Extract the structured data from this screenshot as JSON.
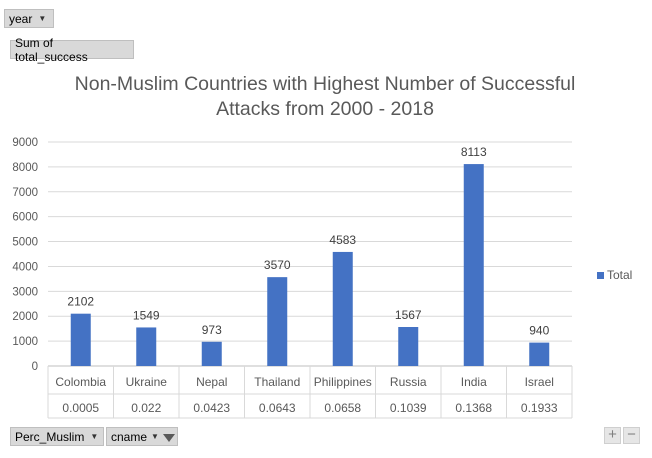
{
  "pivot": {
    "year_label": "year",
    "sum_label": "Sum of total_success",
    "perc_label": "Perc_Muslim",
    "cname_label": "cname",
    "zoom_in": "+",
    "zoom_out": "−"
  },
  "colors": {
    "bar": "#4472c4",
    "grid": "#d9d9d9"
  },
  "chart_data": {
    "type": "bar",
    "title": "Non-Muslim Countries with Highest Number of Successful Attacks from 2000 - 2018",
    "title_lines": [
      "Non-Muslim Countries with Highest Number of Successful",
      "Attacks from 2000 - 2018"
    ],
    "categories": [
      "Colombia",
      "Ukraine",
      "Nepal",
      "Thailand",
      "Philippines",
      "Russia",
      "India",
      "Israel"
    ],
    "outer_categories": [
      "0.0005",
      "0.022",
      "0.0423",
      "0.0643",
      "0.0658",
      "0.1039",
      "0.1368",
      "0.1933"
    ],
    "series": [
      {
        "name": "Total",
        "values": [
          2102,
          1549,
          973,
          3570,
          4583,
          1567,
          8113,
          940
        ]
      }
    ],
    "ylim": [
      0,
      9000
    ],
    "yticks": [
      0,
      1000,
      2000,
      3000,
      4000,
      5000,
      6000,
      7000,
      8000,
      9000
    ],
    "grid": true,
    "legend": "right"
  }
}
